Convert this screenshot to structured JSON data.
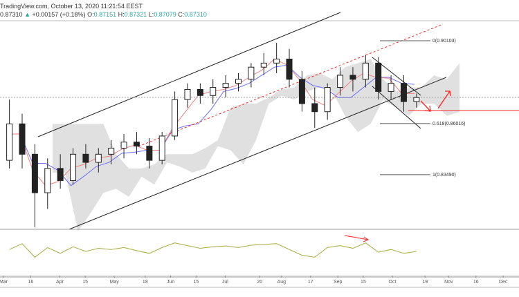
{
  "header": {
    "source_line": "TradingView.com, October 13, 2020 11:21:54 EEST",
    "last_price": "0.87310",
    "change": "+0.00157 (+0.18%)",
    "open_label": "O:",
    "open": "0.87151",
    "high_label": "H:",
    "high": "0.87321",
    "low_label": "L:",
    "low": "0.87079",
    "close_label": "C:",
    "close": "0.87310",
    "up_arrow": "▲"
  },
  "colors": {
    "candle_up": "#ffffff",
    "candle_down": "#222222",
    "tenkan": "#f08080",
    "kijun": "#6b6bff",
    "cloud": "#d8d8d8",
    "oscillator": "#a8a840",
    "annotation": "#ff2020",
    "channel": "#222222",
    "ohlc_values": "#26a69a"
  },
  "chart_data": {
    "type": "candlestick",
    "symbol_timeframe": "weekly approximation of daily candles",
    "x_range": [
      "2020-03-01",
      "2020-12-05"
    ],
    "y_range": [
      0.8,
      0.93
    ],
    "grid": false,
    "candles": [
      {
        "d": "2020-03-02",
        "o": 0.842,
        "h": 0.872,
        "l": 0.838,
        "c": 0.86
      },
      {
        "d": "2020-03-09",
        "o": 0.86,
        "h": 0.865,
        "l": 0.838,
        "c": 0.845
      },
      {
        "d": "2020-03-16",
        "o": 0.845,
        "h": 0.85,
        "l": 0.809,
        "c": 0.826
      },
      {
        "d": "2020-03-23",
        "o": 0.826,
        "h": 0.843,
        "l": 0.818,
        "c": 0.838
      },
      {
        "d": "2020-03-30",
        "o": 0.838,
        "h": 0.845,
        "l": 0.828,
        "c": 0.832
      },
      {
        "d": "2020-04-06",
        "o": 0.832,
        "h": 0.848,
        "l": 0.83,
        "c": 0.845
      },
      {
        "d": "2020-04-13",
        "o": 0.845,
        "h": 0.85,
        "l": 0.838,
        "c": 0.841
      },
      {
        "d": "2020-04-20",
        "o": 0.841,
        "h": 0.848,
        "l": 0.836,
        "c": 0.845
      },
      {
        "d": "2020-04-27",
        "o": 0.845,
        "h": 0.852,
        "l": 0.84,
        "c": 0.848
      },
      {
        "d": "2020-05-04",
        "o": 0.848,
        "h": 0.855,
        "l": 0.843,
        "c": 0.851
      },
      {
        "d": "2020-05-11",
        "o": 0.851,
        "h": 0.856,
        "l": 0.845,
        "c": 0.849
      },
      {
        "d": "2020-05-18",
        "o": 0.849,
        "h": 0.853,
        "l": 0.838,
        "c": 0.842
      },
      {
        "d": "2020-05-25",
        "o": 0.842,
        "h": 0.856,
        "l": 0.84,
        "c": 0.854
      },
      {
        "d": "2020-06-01",
        "o": 0.854,
        "h": 0.876,
        "l": 0.852,
        "c": 0.872
      },
      {
        "d": "2020-06-08",
        "o": 0.872,
        "h": 0.88,
        "l": 0.868,
        "c": 0.877
      },
      {
        "d": "2020-06-15",
        "o": 0.877,
        "h": 0.88,
        "l": 0.87,
        "c": 0.874
      },
      {
        "d": "2020-06-22",
        "o": 0.874,
        "h": 0.882,
        "l": 0.87,
        "c": 0.878
      },
      {
        "d": "2020-06-29",
        "o": 0.878,
        "h": 0.884,
        "l": 0.873,
        "c": 0.88
      },
      {
        "d": "2020-07-06",
        "o": 0.88,
        "h": 0.885,
        "l": 0.876,
        "c": 0.882
      },
      {
        "d": "2020-07-13",
        "o": 0.882,
        "h": 0.89,
        "l": 0.878,
        "c": 0.888
      },
      {
        "d": "2020-07-20",
        "o": 0.888,
        "h": 0.895,
        "l": 0.884,
        "c": 0.89
      },
      {
        "d": "2020-07-27",
        "o": 0.89,
        "h": 0.9,
        "l": 0.885,
        "c": 0.892
      },
      {
        "d": "2020-08-03",
        "o": 0.892,
        "h": 0.897,
        "l": 0.878,
        "c": 0.882
      },
      {
        "d": "2020-08-10",
        "o": 0.882,
        "h": 0.886,
        "l": 0.866,
        "c": 0.87
      },
      {
        "d": "2020-08-17",
        "o": 0.87,
        "h": 0.878,
        "l": 0.858,
        "c": 0.866
      },
      {
        "d": "2020-08-24",
        "o": 0.866,
        "h": 0.88,
        "l": 0.862,
        "c": 0.878
      },
      {
        "d": "2020-08-31",
        "o": 0.878,
        "h": 0.888,
        "l": 0.874,
        "c": 0.884
      },
      {
        "d": "2020-09-07",
        "o": 0.884,
        "h": 0.888,
        "l": 0.876,
        "c": 0.882
      },
      {
        "d": "2020-09-14",
        "o": 0.882,
        "h": 0.894,
        "l": 0.878,
        "c": 0.89
      },
      {
        "d": "2020-09-21",
        "o": 0.89,
        "h": 0.893,
        "l": 0.872,
        "c": 0.876
      },
      {
        "d": "2020-09-28",
        "o": 0.876,
        "h": 0.884,
        "l": 0.872,
        "c": 0.88
      },
      {
        "d": "2020-10-05",
        "o": 0.88,
        "h": 0.884,
        "l": 0.866,
        "c": 0.871
      },
      {
        "d": "2020-10-12",
        "o": 0.871,
        "h": 0.875,
        "l": 0.868,
        "c": 0.873
      }
    ],
    "fibonacci": [
      {
        "label": "0(0.90103)",
        "price": 0.90103
      },
      {
        "label": "0.618(0.86016)",
        "price": 0.86016
      },
      {
        "label": "1(0.83490)",
        "price": 0.8349
      }
    ],
    "support_level": 0.8665,
    "last_price_line": 0.8731,
    "oscillator": {
      "range": [
        0,
        100
      ],
      "values": [
        55,
        70,
        35,
        60,
        45,
        62,
        50,
        58,
        55,
        60,
        52,
        45,
        60,
        72,
        65,
        58,
        62,
        64,
        60,
        66,
        68,
        70,
        55,
        40,
        35,
        60,
        65,
        58,
        72,
        48,
        55,
        45,
        50
      ]
    },
    "x_ticks": [
      {
        "label": "Mar",
        "d": "2020-03-01"
      },
      {
        "label": "16",
        "d": "2020-03-16"
      },
      {
        "label": "Apr",
        "d": "2020-04-01"
      },
      {
        "label": "15",
        "d": "2020-04-15"
      },
      {
        "label": "May",
        "d": "2020-05-01"
      },
      {
        "label": "18",
        "d": "2020-05-18"
      },
      {
        "label": "Jun",
        "d": "2020-06-01"
      },
      {
        "label": "15",
        "d": "2020-06-15"
      },
      {
        "label": "Jul",
        "d": "2020-07-01"
      },
      {
        "label": "20",
        "d": "2020-07-20"
      },
      {
        "label": "Aug",
        "d": "2020-08-01"
      },
      {
        "label": "17",
        "d": "2020-08-17"
      },
      {
        "label": "Sep",
        "d": "2020-09-01"
      },
      {
        "label": "15",
        "d": "2020-09-15"
      },
      {
        "label": "Oct",
        "d": "2020-10-01"
      },
      {
        "label": "19",
        "d": "2020-10-19"
      },
      {
        "label": "Nov",
        "d": "2020-11-01"
      },
      {
        "label": "16",
        "d": "2020-11-16"
      },
      {
        "label": "Dec",
        "d": "2020-12-01"
      }
    ]
  }
}
